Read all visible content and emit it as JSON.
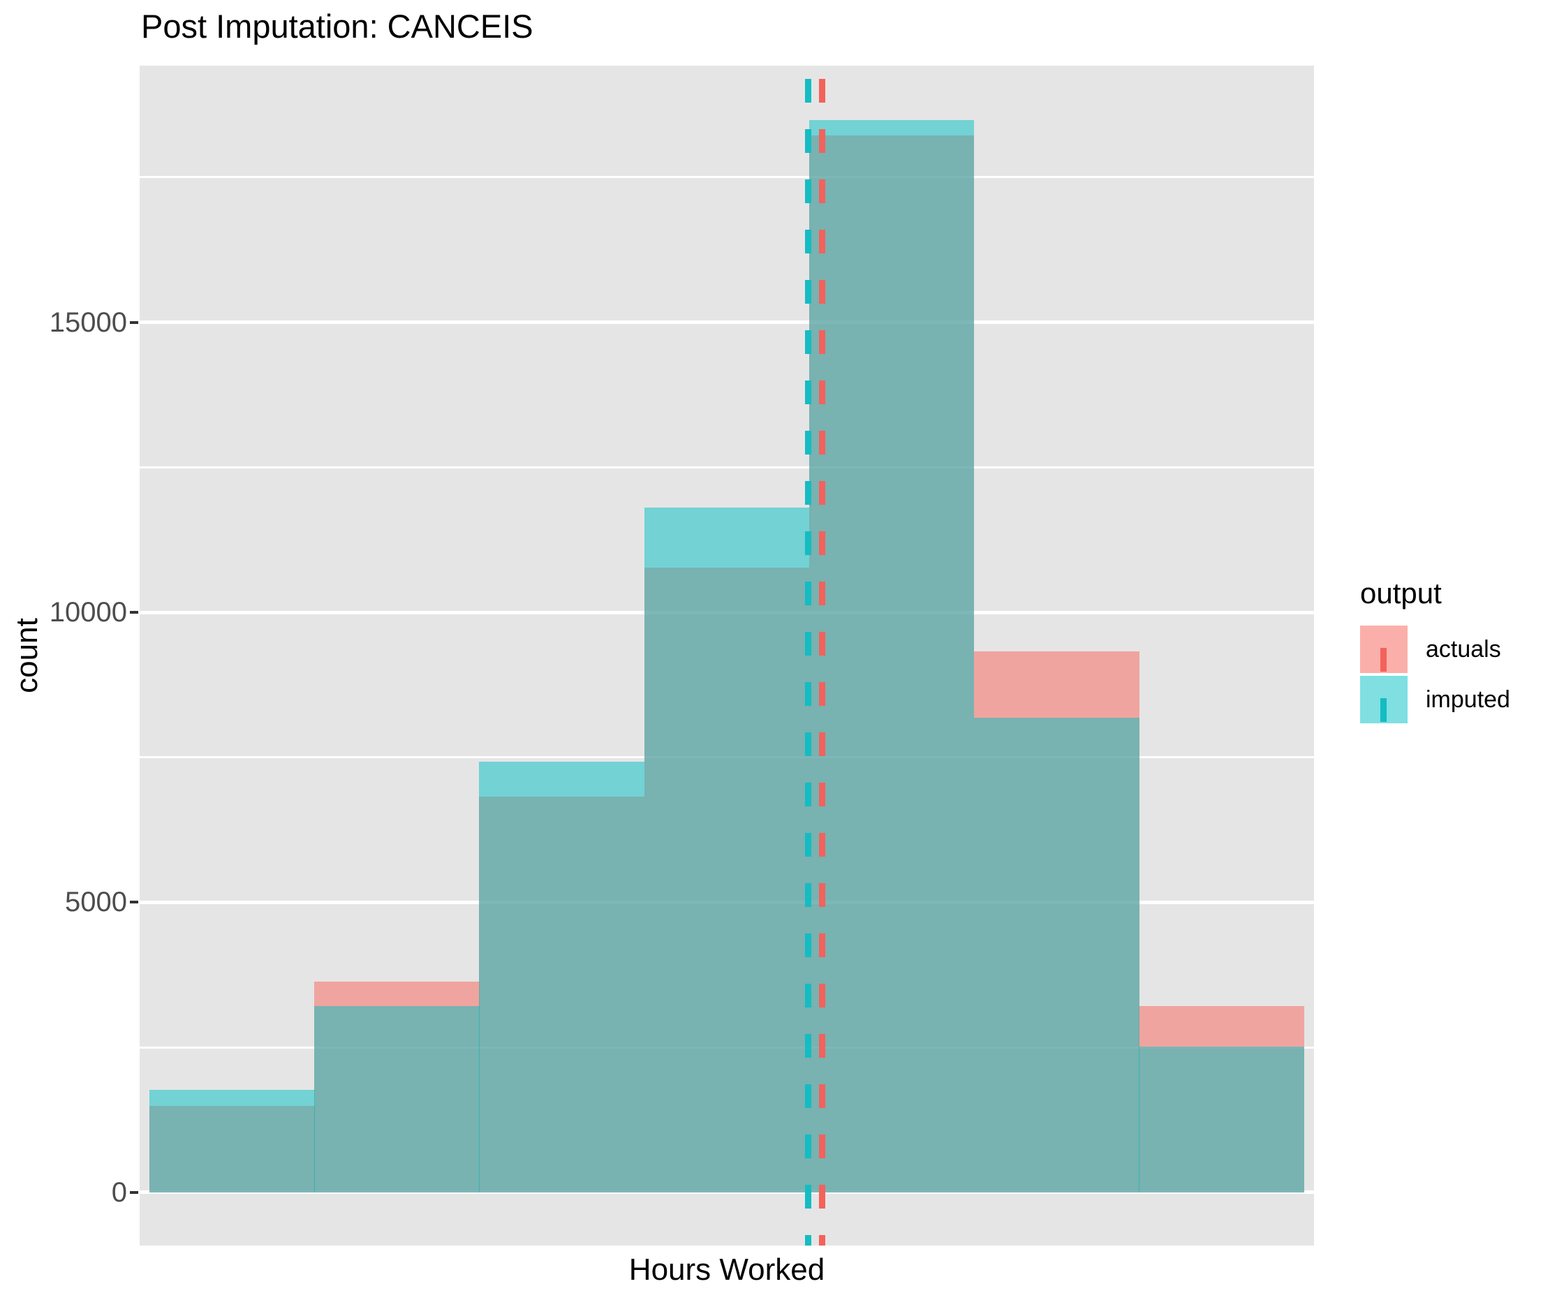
{
  "title": "Post Imputation: CANCEIS",
  "axes": {
    "x_label": "Hours Worked",
    "y_label": "count",
    "y_tick_labels": [
      "0",
      "5000",
      "10000",
      "15000"
    ]
  },
  "legend": {
    "title": "output",
    "items": [
      {
        "label": "actuals",
        "color": "#F8766D"
      },
      {
        "label": "imputed",
        "color": "#00BFC4"
      }
    ]
  },
  "chart_data": {
    "type": "histogram",
    "title": "Post Imputation: CANCEIS",
    "xlabel": "Hours Worked",
    "ylabel": "count",
    "n_bins": 7,
    "y_ticks": [
      0,
      5000,
      10000,
      15000
    ],
    "y_minor_gridlines": [
      2500,
      7500,
      12500,
      17500
    ],
    "ylim": [
      -915,
      19423
    ],
    "x_tick_labels": [],
    "grid": "on",
    "legend_position": "right",
    "panel_bg": "#E5E5E5",
    "gridline_color": "#FFFFFF",
    "series": [
      {
        "name": "actuals",
        "color": "#F8766D",
        "fill_rgba": "rgba(248,118,109,0.58)",
        "values": [
          1490,
          3630,
          6820,
          10770,
          18215,
          9330,
          3210
        ],
        "mean_x_frac": 0.581,
        "mean_line_color": "#F3625B",
        "mean_line_style": "dashed"
      },
      {
        "name": "imputed",
        "color": "#00BFC4",
        "fill_rgba": "rgba(0,191,196,0.50)",
        "values": [
          1770,
          3210,
          7420,
          11800,
          18480,
          8180,
          2520
        ],
        "mean_x_frac": 0.569,
        "mean_line_color": "#15BCC2",
        "mean_line_style": "dashed"
      }
    ]
  }
}
